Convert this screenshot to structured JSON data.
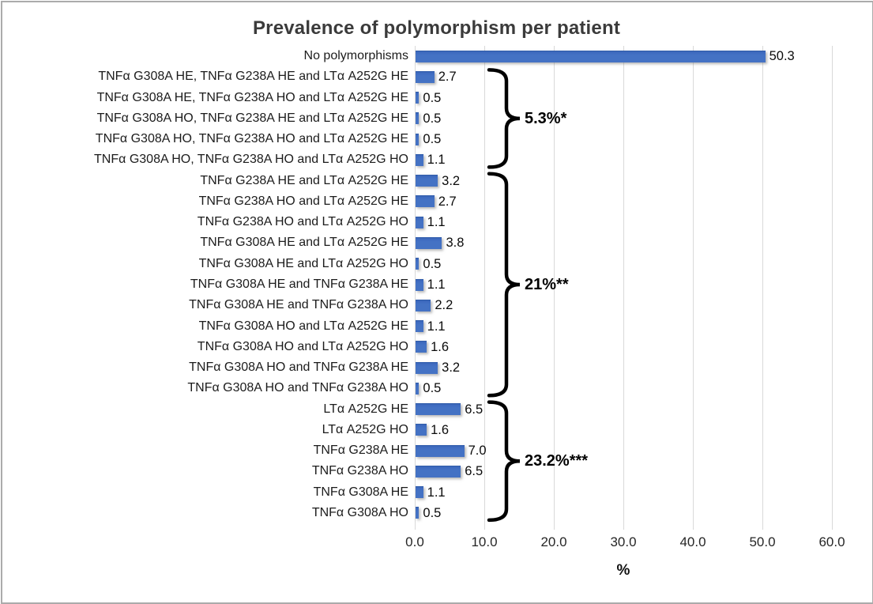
{
  "chart_data": {
    "type": "bar",
    "orientation": "horizontal",
    "title": "Prevalence of polymorphism per patient",
    "xlabel": "%",
    "xlim": [
      0,
      60
    ],
    "xtick_labels": [
      "0.0",
      "10.0",
      "20.0",
      "30.0",
      "40.0",
      "50.0",
      "60.0"
    ],
    "grid": true,
    "legend": false,
    "bar_color": "#4472C4",
    "categories": [
      "No polymorphisms",
      "TNFα G308A HE, TNFα G238A HE and LTα A252G HE",
      "TNFα G308A HE, TNFα G238A HO and LTα A252G HE",
      "TNFα G308A HO, TNFα G238A HE and LTα A252G HE",
      "TNFα G308A HO, TNFα G238A HO and LTα A252G HE",
      "TNFα G308A HO, TNFα G238A HO and LTα A252G HO",
      "TNFα G238A HE and LTα A252G HE",
      "TNFα G238A HO and LTα A252G HE",
      "TNFα G238A HO and LTα A252G HO",
      "TNFα G308A HE and LTα A252G HE",
      "TNFα G308A HE and LTα A252G HO",
      "TNFα G308A HE and TNFα G238A HE",
      "TNFα G308A HE and TNFα G238A HO",
      "TNFα G308A HO and LTα A252G HE",
      "TNFα G308A HO and LTα A252G HO",
      "TNFα G308A HO and TNFα G238A HE",
      "TNFα G308A HO and TNFα G238A HO",
      "LTα A252G HE",
      "LTα A252G HO",
      "TNFα G238A HE",
      "TNFα G238A HO",
      "TNFα G308A HE",
      "TNFα G308A HO"
    ],
    "values": [
      50.3,
      2.7,
      0.5,
      0.5,
      0.5,
      1.1,
      3.2,
      2.7,
      1.1,
      3.8,
      0.5,
      1.1,
      2.2,
      1.1,
      1.6,
      3.2,
      0.5,
      6.5,
      1.6,
      7.0,
      6.5,
      1.1,
      0.5
    ],
    "value_labels": [
      "50.3",
      "2.7",
      "0.5",
      "0.5",
      "0.5",
      "1.1",
      "3.2",
      "2.7",
      "1.1",
      "3.8",
      "0.5",
      "1.1",
      "2.2",
      "1.1",
      "1.6",
      "3.2",
      "0.5",
      "6.5",
      "1.6",
      "7.0",
      "6.5",
      "1.1",
      "0.5"
    ],
    "annotations": [
      {
        "label": "5.3%*",
        "start_index": 1,
        "end_index": 5
      },
      {
        "label": "21%**",
        "start_index": 6,
        "end_index": 16
      },
      {
        "label": "23.2%***",
        "start_index": 17,
        "end_index": 22
      }
    ]
  }
}
